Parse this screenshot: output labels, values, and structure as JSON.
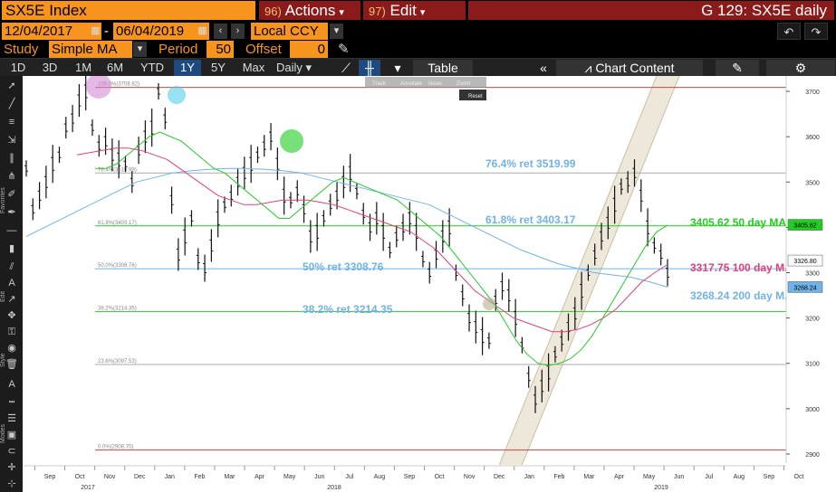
{
  "header": {
    "ticker": "SX5E Index",
    "actions_num": "96)",
    "actions_label": "Actions",
    "edit_num": "97)",
    "edit_label": "Edit",
    "graph_title": "G 129: SX5E daily"
  },
  "dates": {
    "start": "12/04/2017",
    "end": "06/04/2019",
    "currency": "Local CCY"
  },
  "study": {
    "label": "Study",
    "value": "Simple MA",
    "period_label": "Period",
    "period": "50",
    "offset_label": "Offset",
    "offset": "0"
  },
  "toolbar": {
    "ranges": [
      "1D",
      "3D",
      "1M",
      "6M",
      "YTD",
      "1Y",
      "5Y",
      "Max"
    ],
    "active_range": "1Y",
    "interval": "Daily",
    "table_label": "Table",
    "chart_content_label": "Chart Content"
  },
  "popup": {
    "track": "Track",
    "annotate": "Annotate",
    "news": "News",
    "zoom": "Zoom",
    "reset": "Reset"
  },
  "left_tools": {
    "favorites": "Favorites",
    "edit": "Edit",
    "style": "Style",
    "modes": "Modes"
  },
  "colors": {
    "orange": "#f7941d",
    "maroon": "#8b1a1a",
    "ma50": "#22cc22",
    "ma100": "#e0407a",
    "ma200": "#6fb3e8",
    "fib": "#22cc22"
  },
  "chart_data": {
    "type": "line",
    "title": "SX5E daily",
    "ylim": [
      2880,
      3730
    ],
    "yticks": [
      2900,
      3000,
      3100,
      3200,
      3300,
      3400,
      3500,
      3600,
      3700
    ],
    "x_month_labels": [
      "Sep",
      "Oct",
      "Nov",
      "Dec",
      "Jan",
      "Feb",
      "Mar",
      "Apr",
      "May",
      "Jun",
      "Jul",
      "Aug",
      "Sep",
      "Oct",
      "Nov",
      "Dec",
      "Jan",
      "Feb",
      "Mar",
      "Apr",
      "May",
      "Jun",
      "Jul",
      "Aug",
      "Sep",
      "Oct"
    ],
    "x_year_labels": [
      "2017",
      "2018",
      "2019"
    ],
    "fib_levels": [
      {
        "ratio": "100.0%",
        "value": 3708.82,
        "label": "100.0%(3708.82)"
      },
      {
        "ratio": "76.4%",
        "value": 3519.99,
        "label": "76.4%(3519.99)"
      },
      {
        "ratio": "61.8%",
        "value": 3403.17,
        "label": "61.8%(3403.17)"
      },
      {
        "ratio": "50.0%",
        "value": 3308.76,
        "label": "50.0%(3308.76)"
      },
      {
        "ratio": "38.2%",
        "value": 3214.35,
        "label": "38.2%(3214.35)"
      },
      {
        "ratio": "23.6%",
        "value": 3097.53,
        "label": "23.6%(3097.53)"
      },
      {
        "ratio": "0.0%",
        "value": 2908.7,
        "label": "0.0%(2908.70)"
      }
    ],
    "annotations": [
      {
        "text": "76.4% ret 3519.99",
        "color": "#6fb3e8"
      },
      {
        "text": "61.8% ret 3403.17",
        "color": "#6fb3e8"
      },
      {
        "text": "50% ret 3308.76",
        "color": "#6fb3e8"
      },
      {
        "text": "38.2% ret 3214.35",
        "color": "#6fb3e8"
      },
      {
        "text": "3405.62 50 day MA",
        "color": "#22cc22"
      },
      {
        "text": "3317.75 100 day MA",
        "color": "#e0407a"
      },
      {
        "text": "3268.24 200 day MA",
        "color": "#6fb3e8"
      }
    ],
    "right_badges": [
      {
        "text": "3405.62",
        "color": "#22cc22"
      },
      {
        "text": "3326.80",
        "color": "#ffffff"
      },
      {
        "text": "3268.24",
        "color": "#6fb3e8"
      }
    ],
    "price": [
      3530,
      3440,
      3470,
      3500,
      3540,
      3560,
      3620,
      3640,
      3680,
      3700,
      3620,
      3580,
      3590,
      3560,
      3550,
      3540,
      3500,
      3570,
      3600,
      3620,
      3700,
      3640,
      3460,
      3340,
      3380,
      3420,
      3330,
      3310,
      3360,
      3420,
      3450,
      3470,
      3500,
      3520,
      3540,
      3560,
      3580,
      3600,
      3540,
      3470,
      3460,
      3480,
      3440,
      3380,
      3390,
      3420,
      3450,
      3470,
      3500,
      3520,
      3480,
      3430,
      3400,
      3420,
      3390,
      3350,
      3380,
      3400,
      3420,
      3390,
      3330,
      3300,
      3340,
      3380,
      3400,
      3300,
      3250,
      3200,
      3180,
      3160,
      3150,
      3240,
      3270,
      3250,
      3200,
      3140,
      3070,
      3020,
      3050,
      3080,
      3120,
      3150,
      3180,
      3210,
      3260,
      3300,
      3340,
      3380,
      3410,
      3450,
      3490,
      3500,
      3520,
      3470,
      3400,
      3360,
      3340,
      3300
    ],
    "ma50": [
      3530,
      3530,
      3540,
      3560,
      3580,
      3600,
      3610,
      3600,
      3590,
      3570,
      3550,
      3530,
      3520,
      3500,
      3480,
      3460,
      3440,
      3420,
      3420,
      3440,
      3460,
      3480,
      3500,
      3510,
      3500,
      3490,
      3480,
      3470,
      3460,
      3440,
      3420,
      3400,
      3380,
      3350,
      3320,
      3290,
      3260,
      3230,
      3190,
      3150,
      3120,
      3100,
      3095,
      3100,
      3110,
      3130,
      3160,
      3200,
      3240,
      3280,
      3320,
      3360,
      3390,
      3405
    ],
    "ma100": [
      3560,
      3565,
      3570,
      3575,
      3575,
      3570,
      3560,
      3550,
      3530,
      3510,
      3490,
      3470,
      3460,
      3450,
      3450,
      3455,
      3460,
      3460,
      3460,
      3455,
      3450,
      3440,
      3430,
      3420,
      3410,
      3400,
      3390,
      3370,
      3350,
      3320,
      3290,
      3260,
      3240,
      3220,
      3200,
      3190,
      3180,
      3170,
      3170,
      3175,
      3185,
      3200,
      3220,
      3250,
      3280,
      3300,
      3318
    ],
    "ma200": [
      3380,
      3400,
      3420,
      3440,
      3460,
      3480,
      3500,
      3510,
      3520,
      3525,
      3528,
      3530,
      3530,
      3528,
      3525,
      3520,
      3510,
      3500,
      3490,
      3480,
      3470,
      3460,
      3450,
      3430,
      3410,
      3390,
      3370,
      3350,
      3335,
      3320,
      3310,
      3300,
      3295,
      3290,
      3280,
      3268
    ]
  }
}
